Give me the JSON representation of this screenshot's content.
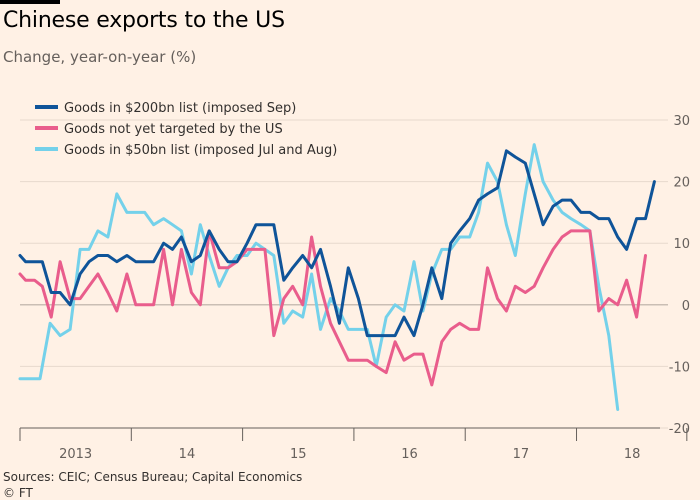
{
  "header": {
    "title": "Chinese exports to the US",
    "subtitle": "Change, year-on-year (%)"
  },
  "footer": {
    "source": "Sources: CEIC; Census Bureau; Capital Economics",
    "credit": "© FT"
  },
  "chart_data": {
    "type": "line",
    "title": "Chinese exports to the US",
    "ylabel": "Change, year-on-year (%)",
    "ylim": [
      -20,
      30
    ],
    "yticks": [
      -20,
      -10,
      0,
      10,
      20,
      30
    ],
    "xlim": [
      2013.0,
      2018.75
    ],
    "x_tick_labels": [
      "2013",
      "14",
      "15",
      "16",
      "17",
      "18"
    ],
    "grid": true,
    "legend_position": "top-left",
    "series": [
      {
        "name": "Goods in $200bn list (imposed Sep)",
        "color": "#0f5499",
        "points": [
          [
            2013.0,
            8
          ],
          [
            2013.05,
            7
          ],
          [
            2013.13,
            7
          ],
          [
            2013.2,
            7
          ],
          [
            2013.28,
            2
          ],
          [
            2013.36,
            2
          ],
          [
            2013.45,
            0
          ],
          [
            2013.54,
            5
          ],
          [
            2013.62,
            7
          ],
          [
            2013.7,
            8
          ],
          [
            2013.79,
            8
          ],
          [
            2013.87,
            7
          ],
          [
            2013.96,
            8
          ],
          [
            2014.04,
            7
          ],
          [
            2014.12,
            7
          ],
          [
            2014.2,
            7
          ],
          [
            2014.29,
            10
          ],
          [
            2014.37,
            9
          ],
          [
            2014.45,
            11
          ],
          [
            2014.54,
            7
          ],
          [
            2014.62,
            8
          ],
          [
            2014.7,
            12
          ],
          [
            2014.79,
            9
          ],
          [
            2014.87,
            7
          ],
          [
            2014.95,
            7
          ],
          [
            2015.04,
            10
          ],
          [
            2015.12,
            13
          ],
          [
            2015.2,
            13
          ],
          [
            2015.28,
            13
          ],
          [
            2015.37,
            4
          ],
          [
            2015.45,
            6
          ],
          [
            2015.54,
            8
          ],
          [
            2015.62,
            6
          ],
          [
            2015.7,
            9
          ],
          [
            2015.79,
            3
          ],
          [
            2015.87,
            -3
          ],
          [
            2015.95,
            6
          ],
          [
            2016.04,
            1
          ],
          [
            2016.12,
            -5
          ],
          [
            2016.2,
            -5
          ],
          [
            2016.29,
            -5
          ],
          [
            2016.37,
            -5
          ],
          [
            2016.45,
            -2
          ],
          [
            2016.54,
            -5
          ],
          [
            2016.62,
            0
          ],
          [
            2016.7,
            6
          ],
          [
            2016.79,
            1
          ],
          [
            2016.87,
            10
          ],
          [
            2016.95,
            12
          ],
          [
            2017.04,
            14
          ],
          [
            2017.12,
            17
          ],
          [
            2017.2,
            18
          ],
          [
            2017.29,
            19
          ],
          [
            2017.37,
            25
          ],
          [
            2017.45,
            24
          ],
          [
            2017.54,
            23
          ],
          [
            2017.62,
            18
          ],
          [
            2017.7,
            13
          ],
          [
            2017.79,
            16
          ],
          [
            2017.87,
            17
          ],
          [
            2017.95,
            17
          ],
          [
            2018.04,
            15
          ],
          [
            2018.12,
            15
          ],
          [
            2018.2,
            14
          ],
          [
            2018.29,
            14
          ],
          [
            2018.37,
            11
          ],
          [
            2018.45,
            9
          ],
          [
            2018.54,
            14
          ],
          [
            2018.62,
            14
          ],
          [
            2018.7,
            20
          ]
        ]
      },
      {
        "name": "Goods not yet targeted by the US",
        "color": "#e95d8c",
        "points": [
          [
            2013.0,
            5
          ],
          [
            2013.05,
            4
          ],
          [
            2013.13,
            4
          ],
          [
            2013.2,
            3
          ],
          [
            2013.28,
            -2
          ],
          [
            2013.36,
            7
          ],
          [
            2013.45,
            1
          ],
          [
            2013.54,
            1
          ],
          [
            2013.62,
            3
          ],
          [
            2013.7,
            5
          ],
          [
            2013.79,
            2
          ],
          [
            2013.87,
            -1
          ],
          [
            2013.96,
            5
          ],
          [
            2014.04,
            0
          ],
          [
            2014.12,
            0
          ],
          [
            2014.2,
            0
          ],
          [
            2014.29,
            9
          ],
          [
            2014.37,
            0
          ],
          [
            2014.45,
            9
          ],
          [
            2014.54,
            2
          ],
          [
            2014.62,
            0
          ],
          [
            2014.7,
            12
          ],
          [
            2014.79,
            6
          ],
          [
            2014.87,
            6
          ],
          [
            2014.95,
            7
          ],
          [
            2015.04,
            9
          ],
          [
            2015.12,
            9
          ],
          [
            2015.2,
            9
          ],
          [
            2015.28,
            -5
          ],
          [
            2015.37,
            1
          ],
          [
            2015.45,
            3
          ],
          [
            2015.54,
            0
          ],
          [
            2015.62,
            11
          ],
          [
            2015.7,
            3
          ],
          [
            2015.79,
            -3
          ],
          [
            2015.87,
            -6
          ],
          [
            2015.95,
            -9
          ],
          [
            2016.04,
            -9
          ],
          [
            2016.12,
            -9
          ],
          [
            2016.2,
            -10
          ],
          [
            2016.29,
            -11
          ],
          [
            2016.37,
            -6
          ],
          [
            2016.45,
            -9
          ],
          [
            2016.54,
            -8
          ],
          [
            2016.62,
            -8
          ],
          [
            2016.7,
            -13
          ],
          [
            2016.79,
            -6
          ],
          [
            2016.87,
            -4
          ],
          [
            2016.95,
            -3
          ],
          [
            2017.04,
            -4
          ],
          [
            2017.12,
            -4
          ],
          [
            2017.2,
            6
          ],
          [
            2017.29,
            1
          ],
          [
            2017.37,
            -1
          ],
          [
            2017.45,
            3
          ],
          [
            2017.54,
            2
          ],
          [
            2017.62,
            3
          ],
          [
            2017.7,
            6
          ],
          [
            2017.79,
            9
          ],
          [
            2017.87,
            11
          ],
          [
            2017.95,
            12
          ],
          [
            2018.04,
            12
          ],
          [
            2018.12,
            12
          ],
          [
            2018.2,
            -1
          ],
          [
            2018.29,
            1
          ],
          [
            2018.37,
            0
          ],
          [
            2018.45,
            4
          ],
          [
            2018.54,
            -2
          ],
          [
            2018.62,
            8
          ]
        ]
      },
      {
        "name": "Goods in $50bn list (imposed Jul and Aug)",
        "color": "#74d1ea",
        "points": [
          [
            2013.0,
            -12
          ],
          [
            2013.1,
            -12
          ],
          [
            2013.18,
            -12
          ],
          [
            2013.27,
            -3
          ],
          [
            2013.36,
            -5
          ],
          [
            2013.45,
            -4
          ],
          [
            2013.54,
            9
          ],
          [
            2013.62,
            9
          ],
          [
            2013.7,
            12
          ],
          [
            2013.79,
            11
          ],
          [
            2013.87,
            18
          ],
          [
            2013.96,
            15
          ],
          [
            2014.04,
            15
          ],
          [
            2014.12,
            15
          ],
          [
            2014.2,
            13
          ],
          [
            2014.29,
            14
          ],
          [
            2014.37,
            13
          ],
          [
            2014.45,
            12
          ],
          [
            2014.54,
            5
          ],
          [
            2014.62,
            13
          ],
          [
            2014.7,
            8
          ],
          [
            2014.79,
            3
          ],
          [
            2014.87,
            6
          ],
          [
            2014.95,
            8
          ],
          [
            2015.04,
            8
          ],
          [
            2015.12,
            10
          ],
          [
            2015.2,
            9
          ],
          [
            2015.28,
            8
          ],
          [
            2015.37,
            -3
          ],
          [
            2015.45,
            -1
          ],
          [
            2015.54,
            -2
          ],
          [
            2015.62,
            5
          ],
          [
            2015.7,
            -4
          ],
          [
            2015.79,
            1
          ],
          [
            2015.87,
            -1
          ],
          [
            2015.95,
            -4
          ],
          [
            2016.04,
            -4
          ],
          [
            2016.12,
            -4
          ],
          [
            2016.2,
            -10
          ],
          [
            2016.29,
            -2
          ],
          [
            2016.37,
            0
          ],
          [
            2016.45,
            -1
          ],
          [
            2016.54,
            7
          ],
          [
            2016.62,
            -1
          ],
          [
            2016.7,
            5
          ],
          [
            2016.79,
            9
          ],
          [
            2016.87,
            9
          ],
          [
            2016.95,
            11
          ],
          [
            2017.04,
            11
          ],
          [
            2017.12,
            15
          ],
          [
            2017.2,
            23
          ],
          [
            2017.29,
            20
          ],
          [
            2017.37,
            13
          ],
          [
            2017.45,
            8
          ],
          [
            2017.54,
            18
          ],
          [
            2017.62,
            26
          ],
          [
            2017.7,
            20
          ],
          [
            2017.79,
            17
          ],
          [
            2017.87,
            15
          ],
          [
            2017.95,
            14
          ],
          [
            2018.04,
            13
          ],
          [
            2018.12,
            12
          ],
          [
            2018.2,
            3
          ],
          [
            2018.29,
            -5
          ],
          [
            2018.37,
            -17
          ]
        ]
      }
    ]
  }
}
